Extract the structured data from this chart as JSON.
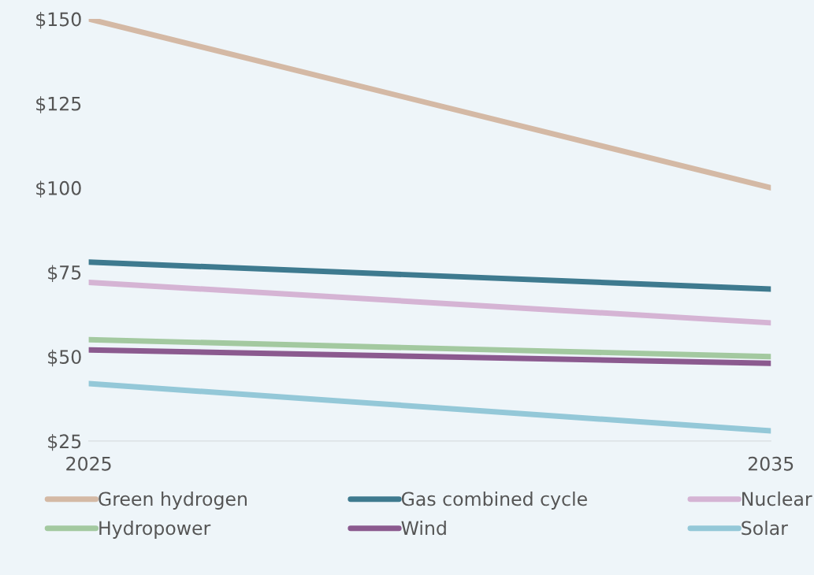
{
  "chart_data": {
    "type": "line",
    "x": [
      2025,
      2035
    ],
    "series": [
      {
        "name": "Green hydrogen",
        "color": "#d4b9a5",
        "values": [
          150,
          100
        ]
      },
      {
        "name": "Gas combined cycle",
        "color": "#3e7a8f",
        "values": [
          78,
          70
        ]
      },
      {
        "name": "Nuclear",
        "color": "#d5b4d4",
        "values": [
          72,
          60
        ]
      },
      {
        "name": "Hydropower",
        "color": "#a3c9a0",
        "values": [
          55,
          50
        ]
      },
      {
        "name": "Wind",
        "color": "#8b5a8f",
        "values": [
          52,
          48
        ]
      },
      {
        "name": "Solar",
        "color": "#94c8d8",
        "values": [
          42,
          28
        ]
      }
    ],
    "xlim": [
      2025,
      2035
    ],
    "xticks": [
      2025,
      2035
    ],
    "ylim": [
      25,
      150
    ],
    "yticks": [
      {
        "value": 25,
        "label": "$25"
      },
      {
        "value": 50,
        "label": "$50"
      },
      {
        "value": 75,
        "label": "$75"
      },
      {
        "value": 100,
        "label": "$100"
      },
      {
        "value": 125,
        "label": "$125"
      },
      {
        "value": 150,
        "label": "$150"
      }
    ],
    "grid": false,
    "legend": "bottom",
    "marker": "none",
    "line_style": "solid"
  }
}
